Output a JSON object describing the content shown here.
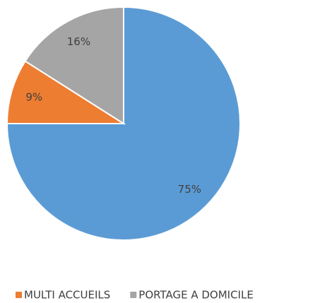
{
  "chart_data": {
    "type": "pie",
    "categories": [
      null,
      "MULTI ACCUEILS",
      "PORTAGE A DOMICILE"
    ],
    "values": [
      75,
      9,
      16
    ],
    "value_labels": [
      "75%",
      "9%",
      "16%"
    ],
    "colors": [
      "#5b9bd5",
      "#ed7d31",
      "#a5a5a5"
    ],
    "legend": "bottom"
  }
}
